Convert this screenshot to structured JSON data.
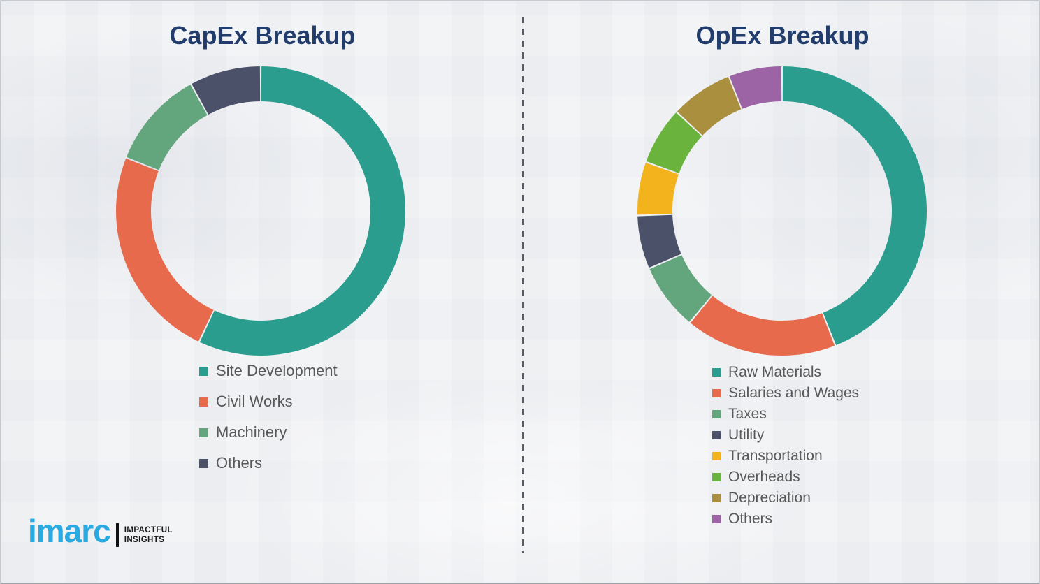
{
  "page": {
    "background_color": "#f1f2f4",
    "divider_color": "#565b64",
    "title_color": "#223d6c",
    "legend_text_color": "#595959"
  },
  "branding": {
    "logo_text": "imarc",
    "tagline_line1": "IMPACTFUL",
    "tagline_line2": "INSIGHTS",
    "logo_color": "#29abe2"
  },
  "chart_data": [
    {
      "type": "pie",
      "variant": "donut",
      "title": "CapEx Breakup",
      "legend_position": "below-left",
      "start_angle_deg": 0,
      "direction": "clockwise",
      "categories": [
        "Site Development",
        "Civil Works",
        "Machinery",
        "Others"
      ],
      "values": [
        57,
        24,
        11,
        8
      ],
      "colors": [
        "#2a9d8f",
        "#e76a4d",
        "#63a57c",
        "#4a5168"
      ]
    },
    {
      "type": "pie",
      "variant": "donut",
      "title": "OpEx Breakup",
      "legend_position": "below-left",
      "start_angle_deg": 0,
      "direction": "clockwise",
      "categories": [
        "Raw Materials",
        "Salaries and Wages",
        "Taxes",
        "Utility",
        "Transportation",
        "Overheads",
        "Depreciation",
        "Others"
      ],
      "values": [
        44,
        17,
        7.5,
        6,
        6,
        6.5,
        7,
        6
      ],
      "colors": [
        "#2a9d8f",
        "#e76a4d",
        "#63a57c",
        "#4a5168",
        "#f2b31c",
        "#6ab43e",
        "#a98f3e",
        "#9c63a5"
      ]
    }
  ]
}
